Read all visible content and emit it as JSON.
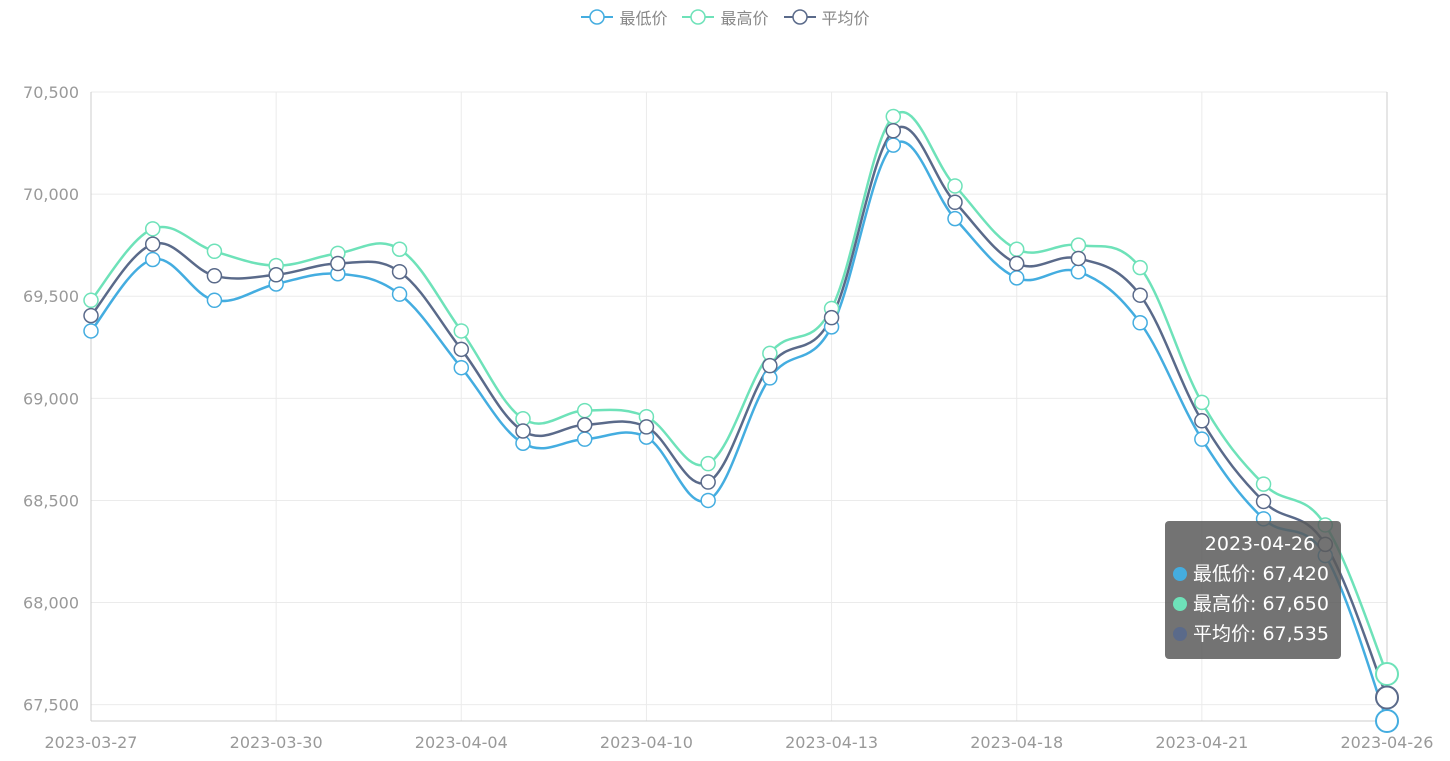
{
  "legend": [
    {
      "name": "最低价",
      "color": "#44ADE0"
    },
    {
      "name": "最高价",
      "color": "#6EE2B9"
    },
    {
      "name": "平均价",
      "color": "#5A6A8A"
    }
  ],
  "tooltip": {
    "date": "2023-04-26",
    "rows": [
      {
        "label": "最低价: 67,420",
        "color": "#44ADE0"
      },
      {
        "label": "最高价: 67,650",
        "color": "#6EE2B9"
      },
      {
        "label": "平均价: 67,535",
        "color": "#5A6A8A"
      }
    ]
  },
  "chart_data": {
    "type": "line",
    "smooth": true,
    "grid": true,
    "legend_position": "top-center",
    "x_tick_labels": [
      "2023-03-27",
      "2023-03-30",
      "2023-04-04",
      "2023-04-10",
      "2023-04-13",
      "2023-04-18",
      "2023-04-21",
      "2023-04-26"
    ],
    "y_tick_labels": [
      "67,500",
      "68,000",
      "68,500",
      "69,000",
      "69,500",
      "70,000",
      "70,500"
    ],
    "ylim": [
      67420,
      70500
    ],
    "y_ticks": [
      67500,
      68000,
      68500,
      69000,
      69500,
      70000,
      70500
    ],
    "point_count": 22,
    "highlighted_index": 21,
    "series": [
      {
        "name": "最低价",
        "color": "#44ADE0",
        "values": [
          69330,
          69680,
          69480,
          69560,
          69610,
          69510,
          69150,
          68780,
          68800,
          68810,
          68500,
          69100,
          69350,
          70240,
          69880,
          69590,
          69620,
          69370,
          68800,
          68410,
          68230,
          67420
        ]
      },
      {
        "name": "最高价",
        "color": "#6EE2B9",
        "values": [
          69480,
          69830,
          69720,
          69650,
          69710,
          69730,
          69330,
          68900,
          68940,
          68910,
          68680,
          69220,
          69440,
          70380,
          70040,
          69730,
          69750,
          69640,
          68980,
          68580,
          68380,
          67650
        ]
      },
      {
        "name": "平均价",
        "color": "#5A6A8A",
        "values": [
          69405,
          69755,
          69600,
          69605,
          69660,
          69620,
          69240,
          68840,
          68870,
          68860,
          68590,
          69160,
          69395,
          70310,
          69960,
          69660,
          69685,
          69505,
          68890,
          68495,
          68285,
          67535
        ]
      }
    ]
  }
}
